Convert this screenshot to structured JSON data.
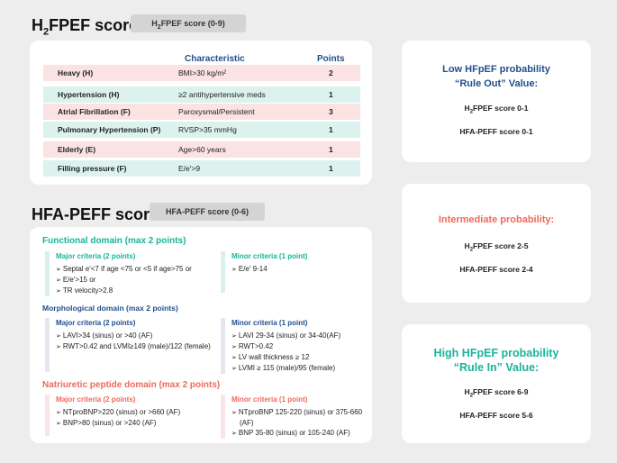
{
  "h2fpef": {
    "title_pre": "H",
    "title_sub": "2",
    "title_post": "FPEF score",
    "badge_pre": "H",
    "badge_sub": "2",
    "badge_post": "FPEF score (0-9)",
    "headers": {
      "characteristic": "Characteristic",
      "points": "Points"
    },
    "rows": [
      {
        "name": "Heavy (H)",
        "criteria": "BMI>30 kg/m²",
        "points": "2"
      },
      {
        "name": "Hypertension (H)",
        "criteria": "≥2 antihypertensive meds",
        "points": "1"
      },
      {
        "name": "Atrial Fibrillation (F)",
        "criteria": "Paroxysmal/Persistent",
        "points": "3"
      },
      {
        "name": "Pulmonary Hypertension (P)",
        "criteria": "RVSP>35 mmHg",
        "points": "1"
      },
      {
        "name": "Elderly (E)",
        "criteria": "Age>60 years",
        "points": "1"
      },
      {
        "name": "Filling pressure (F)",
        "criteria": "E/e'>9",
        "points": "1"
      }
    ]
  },
  "hfapeff": {
    "title": "HFA-PEFF score",
    "badge": "HFA-PEFF score (0-6)",
    "functional": {
      "title": "Functional domain  (max 2 points)",
      "major_title": "Major criteria (2 points)",
      "major": [
        "Septal e'<7 if age <75 or <5 if age>75 or",
        "E/e'>15 or",
        "TR velocity>2.8"
      ],
      "minor_title": "Minor criteria (1 point)",
      "minor": [
        "E/e' 9-14"
      ]
    },
    "morphological": {
      "title": "Morphological domain  (max 2 points)",
      "major_title": "Major criteria (2 points)",
      "major": [
        "LAVI>34 (sinus) or >40 (AF)",
        "RWT>0.42 and LVMI≥149 (male)/122 (female)"
      ],
      "minor_title": "Minor criteria (1 point)",
      "minor": [
        "LAVI 29-34 (sinus) or 34-40(AF)",
        "RWT>0.42",
        "LV wall thickness ≥ 12",
        "LVMI ≥ 115 (male)/95 (female)"
      ]
    },
    "natriuretic": {
      "title": "Natriuretic peptide domain (max 2 points)",
      "major_title": "Major criteria (2 points)",
      "major": [
        "NTproBNP>220 (sinus) or >660 (AF)",
        "BNP>80 (sinus) or >240 (AF)"
      ],
      "minor_title": "Minor criteria (1 point)",
      "minor": [
        "NTproBNP 125-220 (sinus) or 375-660 (AF)",
        "BNP 35-80 (sinus) or 105-240 (AF)"
      ]
    }
  },
  "probability": {
    "low": {
      "title1": "Low HFpEF probability",
      "title2": "“Rule Out” Value:",
      "h2_pre": "H",
      "h2_sub": "2",
      "h2_post": "FPEF score 0-1",
      "hfa": "HFA-PEFF score 0-1"
    },
    "intermediate": {
      "title1": "Intermediate probability:",
      "h2_pre": "H",
      "h2_sub": "2",
      "h2_post": "FPEF score 2-5",
      "hfa": "HFA-PEFF score 2-4"
    },
    "high": {
      "title1": "High HFpEF probability",
      "title2": "“Rule In” Value:",
      "h2_pre": "H",
      "h2_sub": "2",
      "h2_post": "FPEF score 6-9",
      "hfa": "HFA-PEFF score 5-6"
    }
  },
  "colors": {
    "teal": "#1ab39a",
    "blue": "#1f4f8f",
    "red": "#ee6a5a",
    "pink_row": "#fbe3e3",
    "teal_row": "#dcf2ef"
  }
}
